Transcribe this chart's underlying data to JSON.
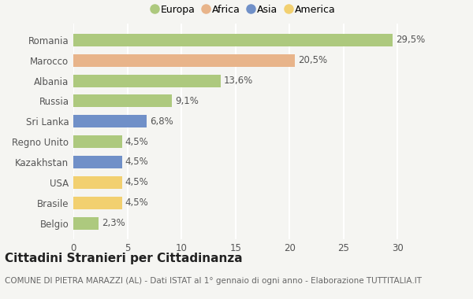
{
  "countries": [
    "Romania",
    "Marocco",
    "Albania",
    "Russia",
    "Sri Lanka",
    "Regno Unito",
    "Kazakhstan",
    "USA",
    "Brasile",
    "Belgio"
  ],
  "values": [
    29.5,
    20.5,
    13.6,
    9.1,
    6.8,
    4.5,
    4.5,
    4.5,
    4.5,
    2.3
  ],
  "labels": [
    "29,5%",
    "20,5%",
    "13,6%",
    "9,1%",
    "6,8%",
    "4,5%",
    "4,5%",
    "4,5%",
    "4,5%",
    "2,3%"
  ],
  "continents": [
    "Europa",
    "Africa",
    "Europa",
    "Europa",
    "Asia",
    "Europa",
    "Asia",
    "America",
    "America",
    "Europa"
  ],
  "continent_colors": {
    "Europa": "#adc97e",
    "Africa": "#e8b48a",
    "Asia": "#7090c8",
    "America": "#f2d070"
  },
  "legend_order": [
    "Europa",
    "Africa",
    "Asia",
    "America"
  ],
  "legend_colors": [
    "#adc97e",
    "#e8b48a",
    "#7090c8",
    "#f2d070"
  ],
  "background_color": "#f5f5f2",
  "title": "Cittadini Stranieri per Cittadinanza",
  "subtitle": "COMUNE DI PIETRA MARAZZI (AL) - Dati ISTAT al 1° gennaio di ogni anno - Elaborazione TUTTITALIA.IT",
  "xlim": [
    0,
    31.5
  ],
  "xticks": [
    0,
    5,
    10,
    15,
    20,
    25,
    30
  ],
  "bar_height": 0.62,
  "grid_color": "#ffffff",
  "label_fontsize": 8.5,
  "tick_fontsize": 8.5,
  "ytick_fontsize": 8.5,
  "title_fontsize": 11,
  "subtitle_fontsize": 7.5
}
